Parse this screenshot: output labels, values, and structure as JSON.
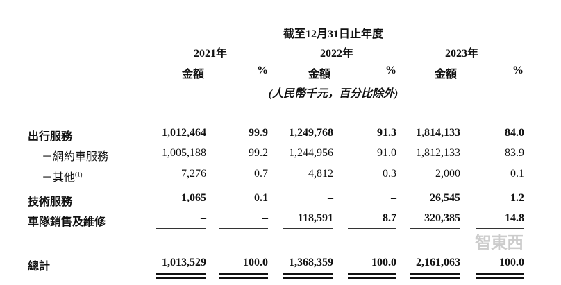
{
  "header": {
    "period": "截至12月31日止年度",
    "years": [
      "2021年",
      "2022年",
      "2023年"
    ],
    "amount_label": "金額",
    "pct_label": "%",
    "unit_note": "(人民幣千元，百分比除外)"
  },
  "rows": [
    {
      "label": "出行服務",
      "bold": true,
      "values": [
        "1,012,464",
        "99.9",
        "1,249,768",
        "91.3",
        "1,814,133",
        "84.0"
      ]
    },
    {
      "label": "－網約車服務",
      "bold": false,
      "values": [
        "1,005,188",
        "99.2",
        "1,244,956",
        "91.0",
        "1,812,133",
        "83.9"
      ]
    },
    {
      "label": "－其他",
      "footnote": "(1)",
      "bold": false,
      "values": [
        "7,276",
        "0.7",
        "4,812",
        "0.3",
        "2,000",
        "0.1"
      ]
    },
    {
      "label": "技術服務",
      "bold": true,
      "values": [
        "1,065",
        "0.1",
        "–",
        "–",
        "26,545",
        "1.2"
      ]
    },
    {
      "label": "車隊銷售及維修",
      "bold": true,
      "values": [
        "–",
        "–",
        "118,591",
        "8.7",
        "320,385",
        "14.8"
      ]
    }
  ],
  "total": {
    "label": "總計",
    "values": [
      "1,013,529",
      "100.0",
      "1,368,359",
      "100.0",
      "2,161,063",
      "100.0"
    ]
  },
  "watermark": "智東西"
}
